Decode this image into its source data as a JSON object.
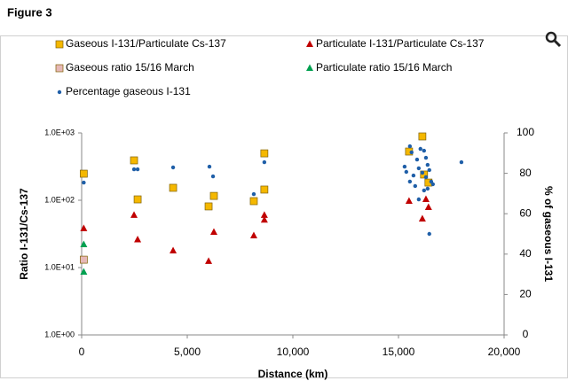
{
  "figure_label": "Figure 3",
  "chart_data": {
    "type": "scatter",
    "xlabel": "Distance (km)",
    "ylabel": "Ratio I-131/Cs-137",
    "y2label": "% of gaseous I-131",
    "xlim": [
      0,
      20000
    ],
    "xticks": [
      0,
      {
        "value": 5000,
        "label": "5,000"
      },
      {
        "value": 10000,
        "label": "10,000"
      },
      {
        "value": 15000,
        "label": "15,000"
      },
      {
        "value": 20000,
        "label": "20,000"
      }
    ],
    "ylim": [
      1,
      1000
    ],
    "yscale": "log",
    "yticks": [
      {
        "value": 1,
        "label": "1.0E+00"
      },
      {
        "value": 10,
        "label": "1.0E+01"
      },
      {
        "value": 100,
        "label": "1.0E+02"
      },
      {
        "value": 1000,
        "label": "1.0E+03"
      }
    ],
    "y2lim": [
      0,
      100
    ],
    "y2ticks": [
      0,
      20,
      40,
      60,
      80,
      100
    ],
    "grid": false,
    "series": [
      {
        "name": "Gaseous I-131/Particulate Cs-137",
        "color": "#f5b800",
        "marker": "square",
        "x": [
          100,
          2480,
          2650,
          4330,
          6010,
          6260,
          8150,
          8650,
          8650,
          15500,
          16130,
          16210,
          16420
        ],
        "values": [
          248,
          391,
          103,
          153,
          81,
          116,
          97,
          497,
          144,
          529,
          886,
          241,
          183
        ]
      },
      {
        "name": "Particulate I-131/Particulate Cs-137",
        "color": "#c00000",
        "marker": "triangle",
        "x": [
          100,
          2480,
          2650,
          4330,
          6010,
          6260,
          8150,
          8650,
          8650,
          15500,
          16130,
          16300,
          16420
        ],
        "values": [
          38,
          60,
          26,
          17.8,
          12.4,
          33.6,
          29.8,
          60,
          51,
          97,
          53,
          103,
          78.5
        ]
      },
      {
        "name": "Gaseous ratio 15/16 March",
        "color": "#e6b8b7",
        "marker": "square",
        "x": [
          100
        ],
        "values": [
          13.1
        ]
      },
      {
        "name": "Particulate ratio 15/16 March",
        "color": "#00a050",
        "marker": "triangle",
        "x": [
          100,
          100
        ],
        "values": [
          22,
          8.6
        ]
      },
      {
        "name": "Percentage gaseous I-131",
        "color": "#1f5fa8",
        "marker": "circle",
        "axis": "y2",
        "x": [
          100,
          2480,
          2650,
          4330,
          6050,
          6220,
          8150,
          8650,
          15290,
          15540,
          15620,
          15880,
          15960,
          15370,
          15710,
          15540,
          15790,
          16040,
          16210,
          16300,
          16380,
          16130,
          16300,
          16460,
          16550,
          16630,
          16210,
          16380,
          15960,
          16460,
          17980
        ],
        "values": [
          75.4,
          82,
          82,
          82.9,
          83.3,
          78.5,
          69.7,
          85.5,
          83.3,
          93.4,
          90.4,
          86.8,
          82.5,
          80.7,
          78.9,
          75.9,
          73.7,
          92.1,
          91.2,
          87.7,
          84.2,
          80.3,
          78.1,
          81.6,
          75.9,
          74.6,
          71.5,
          72.4,
          67.1,
          50,
          85.5
        ]
      }
    ]
  }
}
